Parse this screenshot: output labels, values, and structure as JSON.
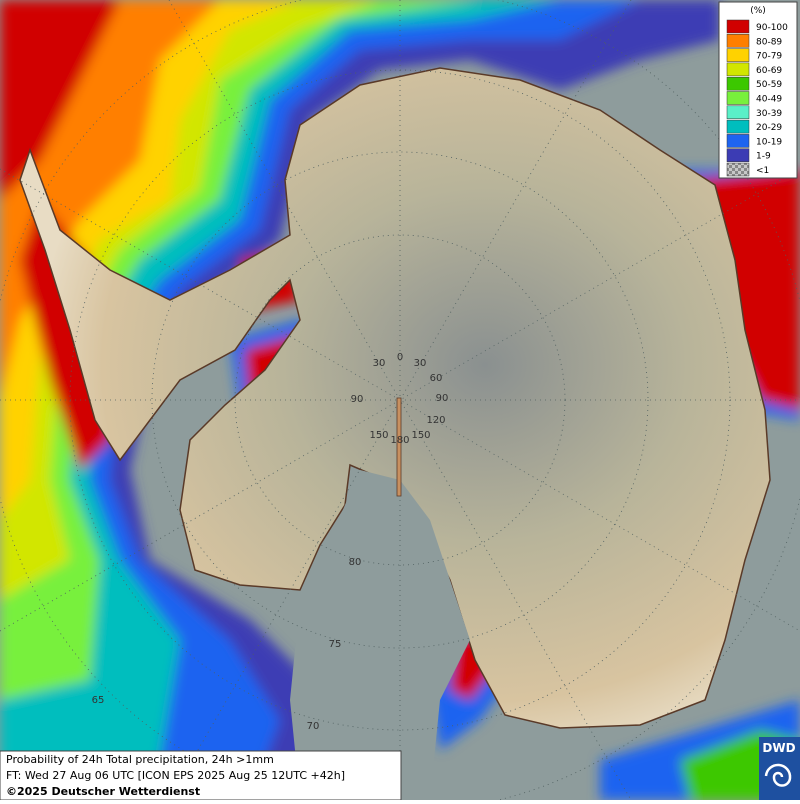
{
  "legend": {
    "title": "(%)",
    "items": [
      {
        "label": "90-100",
        "color": "#d10000"
      },
      {
        "label": "80-89",
        "color": "#ff7f00"
      },
      {
        "label": "70-79",
        "color": "#ffd200"
      },
      {
        "label": "60-69",
        "color": "#d2e600"
      },
      {
        "label": "50-59",
        "color": "#3cc800"
      },
      {
        "label": "40-49",
        "color": "#78f03c"
      },
      {
        "label": "30-39",
        "color": "#5af0c8"
      },
      {
        "label": "20-29",
        "color": "#00bebe"
      },
      {
        "label": "10-19",
        "color": "#1e64f0"
      },
      {
        "label": "1-9",
        "color": "#3c3cb4"
      },
      {
        "label": "<1",
        "color": "#a0a0a0"
      }
    ]
  },
  "graticule": {
    "longitude_labels": [
      "0",
      "30",
      "60",
      "90",
      "120",
      "150",
      "180",
      "150",
      "90",
      "30"
    ],
    "latitude_labels": [
      "80",
      "75",
      "70",
      "65"
    ]
  },
  "info": {
    "lines": [
      "Probability of 24h Total precipitation, 24h >1mm",
      "FT: Wed 27 Aug 06 UTC [ICON EPS 2025 Aug 25 12UTC +42h]",
      "©2025 Deutscher Wetterdienst"
    ]
  },
  "logo": "DWD"
}
